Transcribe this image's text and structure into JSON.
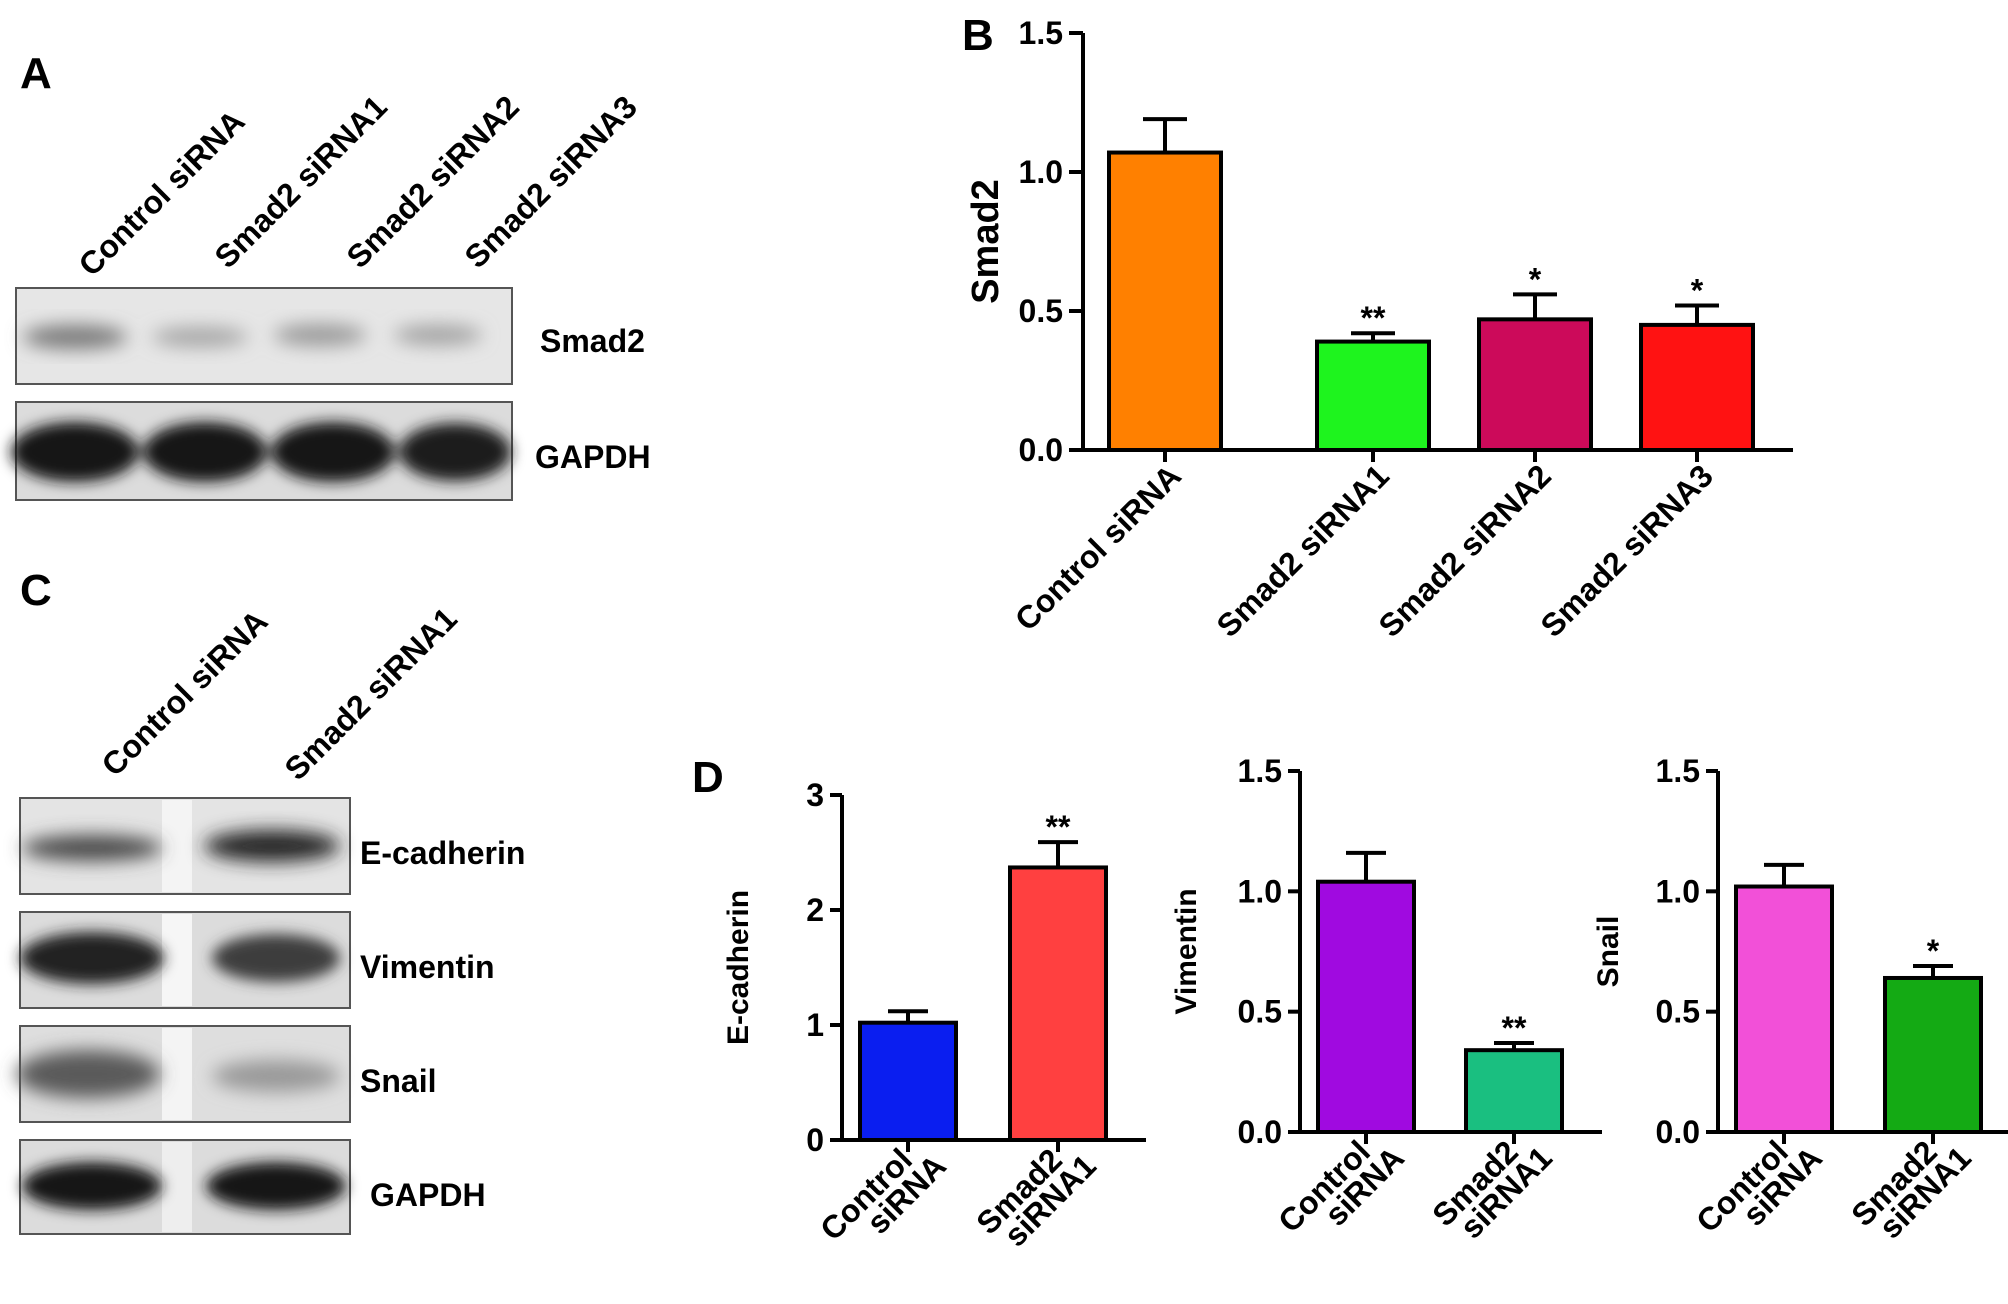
{
  "panels": {
    "a": {
      "letter": "A",
      "lanes": [
        "Control siRNA",
        "Smad2 siRNA1",
        "Smad2 siRNA2",
        "Smad2 siRNA3"
      ],
      "bands": [
        "Smad2",
        "GAPDH"
      ]
    },
    "b": {
      "letter": "B"
    },
    "c": {
      "letter": "C",
      "lanes": [
        "Control siRNA",
        "Smad2 siRNA1"
      ],
      "bands": [
        "E-cadherin",
        "Vimentin",
        "Snail",
        "GAPDH"
      ]
    },
    "d": {
      "letter": "D"
    }
  },
  "colors": {
    "control_orange": "#FF8000",
    "sirna1_green": "#1EF41E",
    "sirna2_crimson": "#CC0A5A",
    "sirna3_red": "#FF1212",
    "ecad_control_blue": "#0A1EF0",
    "ecad_sirna_red": "#FF4040",
    "vim_control_purple": "#A00AE0",
    "vim_sirna_teal": "#1ABF80",
    "snail_control_pink": "#F250D8",
    "snail_sirna_green": "#14AA14"
  },
  "chart_data": [
    {
      "id": "B",
      "type": "bar",
      "categories": [
        "Control siRNA",
        "Smad2 siRNA1",
        "Smad2 siRNA2",
        "Smad2 siRNA3"
      ],
      "values": [
        1.07,
        0.39,
        0.47,
        0.45
      ],
      "errors": [
        0.12,
        0.03,
        0.09,
        0.07
      ],
      "significance": [
        "",
        "**",
        "*",
        "*"
      ],
      "colors": [
        "#FF8000",
        "#1EF41E",
        "#CC0A5A",
        "#FF1212"
      ],
      "ylabel": "Smad2",
      "ylim": [
        0,
        1.5
      ],
      "yticks": [
        "0.0",
        "0.5",
        "1.0",
        "1.5"
      ],
      "grid": false
    },
    {
      "id": "D1",
      "type": "bar",
      "categories": [
        [
          "Control",
          "siRNA"
        ],
        [
          "Smad2",
          "siRNA1"
        ]
      ],
      "values": [
        1.02,
        2.37
      ],
      "errors": [
        0.1,
        0.22
      ],
      "significance": [
        "",
        "**"
      ],
      "colors": [
        "#0A1EF0",
        "#FF4040"
      ],
      "ylabel": "E-cadherin",
      "ylim": [
        0,
        3
      ],
      "yticks": [
        "0",
        "1",
        "2",
        "3"
      ],
      "grid": false
    },
    {
      "id": "D2",
      "type": "bar",
      "categories": [
        [
          "Control",
          "siRNA"
        ],
        [
          "Smad2",
          "siRNA1"
        ]
      ],
      "values": [
        1.04,
        0.34
      ],
      "errors": [
        0.12,
        0.03
      ],
      "significance": [
        "",
        "**"
      ],
      "colors": [
        "#A00AE0",
        "#1ABF80"
      ],
      "ylabel": "Vimentin",
      "ylim": [
        0,
        1.5
      ],
      "yticks": [
        "0.0",
        "0.5",
        "1.0",
        "1.5"
      ],
      "grid": false
    },
    {
      "id": "D3",
      "type": "bar",
      "categories": [
        [
          "Control",
          "siRNA"
        ],
        [
          "Smad2",
          "siRNA1"
        ]
      ],
      "values": [
        1.02,
        0.64
      ],
      "errors": [
        0.09,
        0.05
      ],
      "significance": [
        "",
        "*"
      ],
      "colors": [
        "#F250D8",
        "#14AA14"
      ],
      "ylabel": "Snail",
      "ylim": [
        0,
        1.5
      ],
      "yticks": [
        "0.0",
        "0.5",
        "1.0",
        "1.5"
      ],
      "grid": false
    }
  ]
}
